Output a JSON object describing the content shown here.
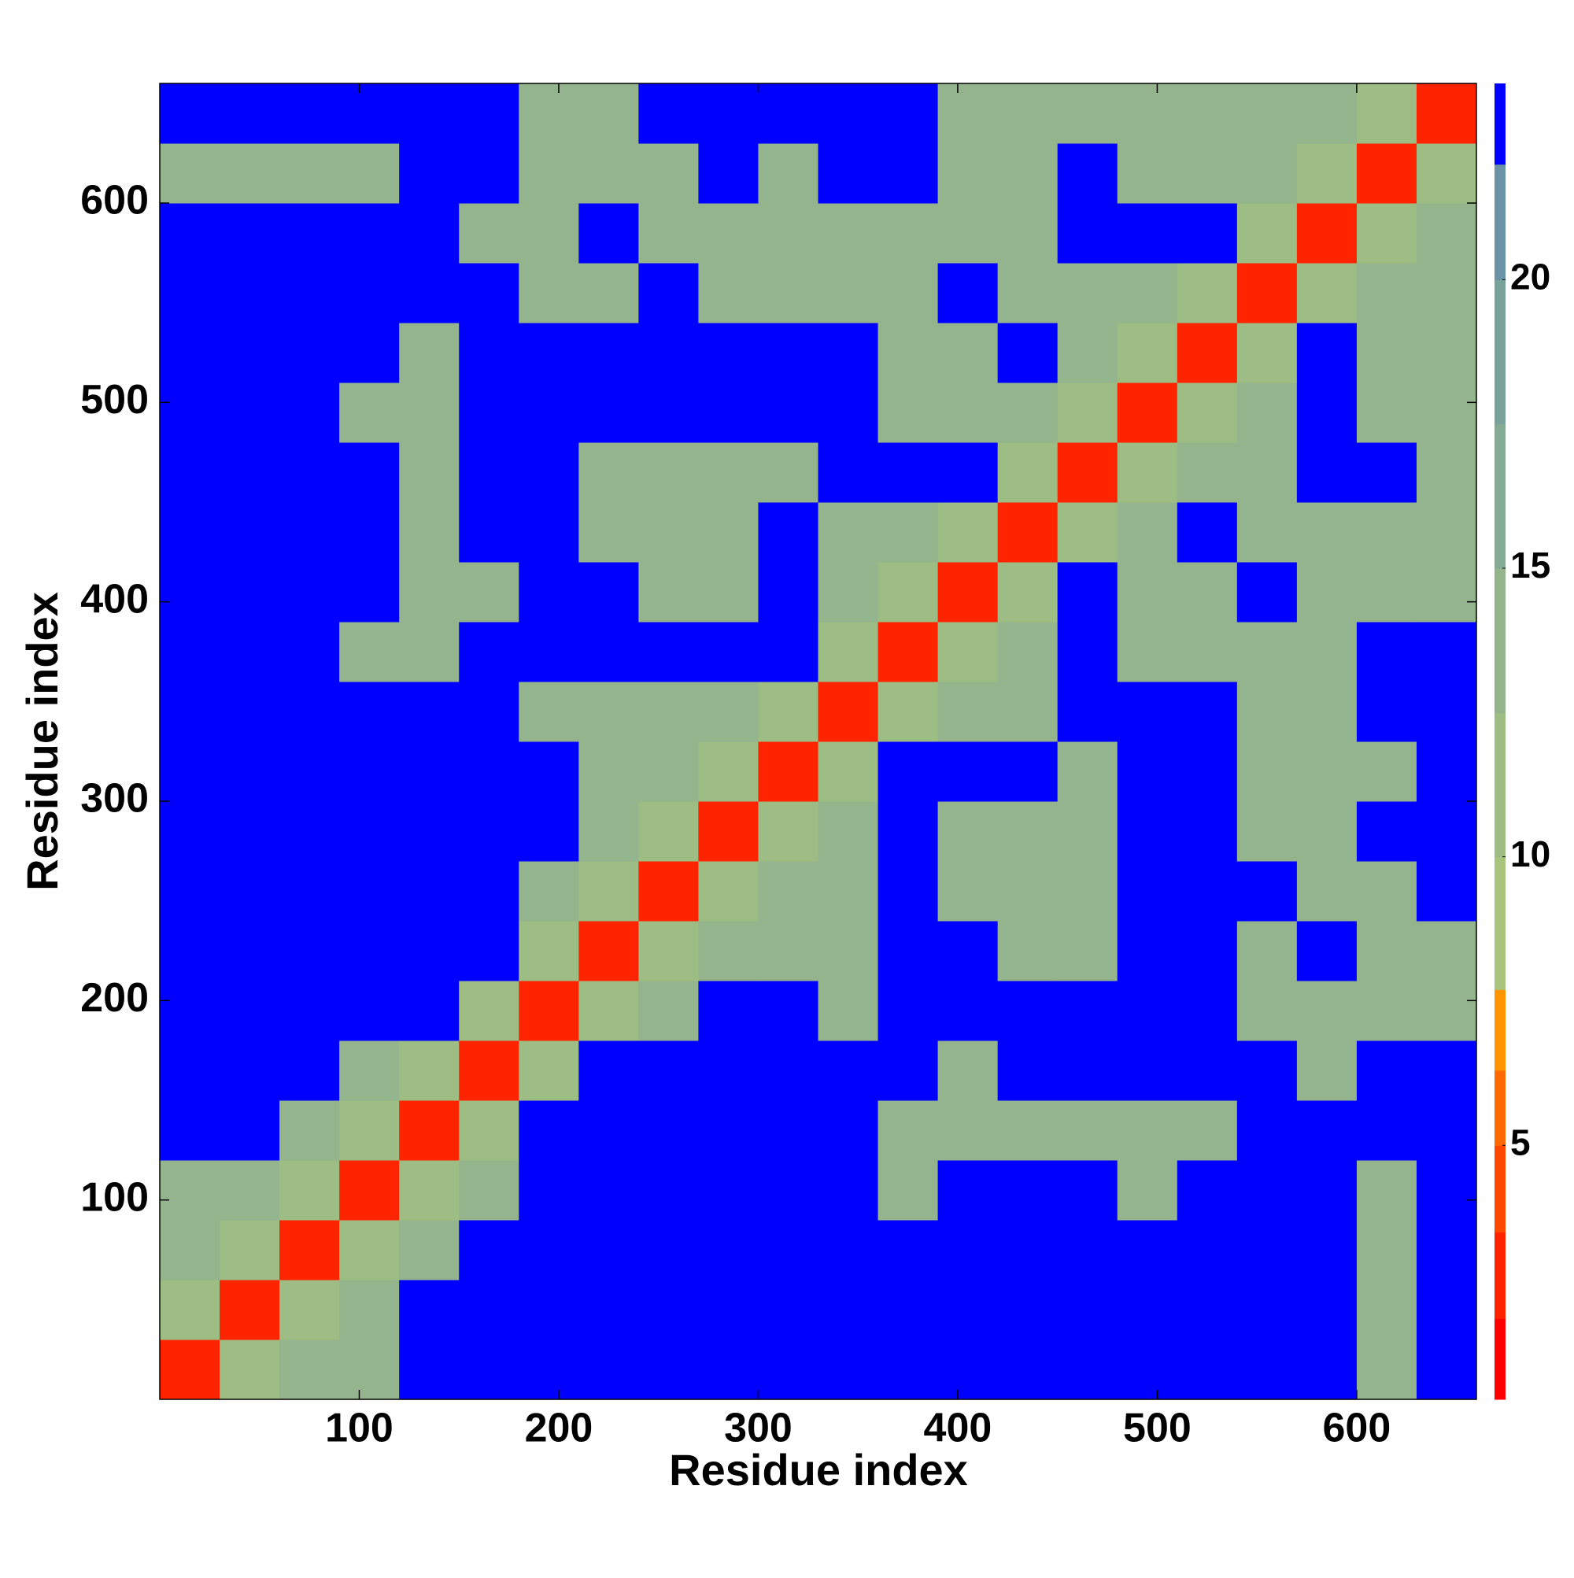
{
  "chart_data": {
    "type": "heatmap",
    "xlabel": "Residue index",
    "ylabel": "Residue index",
    "x": [
      15,
      45,
      75,
      105,
      135,
      165,
      195,
      225,
      255,
      285,
      315,
      345,
      375,
      405,
      435,
      465,
      495,
      525,
      555,
      585,
      615,
      645
    ],
    "y": [
      15,
      45,
      75,
      105,
      135,
      165,
      195,
      225,
      255,
      285,
      315,
      345,
      375,
      405,
      435,
      465,
      495,
      525,
      555,
      585,
      615,
      645
    ],
    "cell_size": 30,
    "z": [
      [
        2,
        10,
        14,
        14,
        24,
        24,
        24,
        24,
        24,
        24,
        24,
        24,
        24,
        24,
        24,
        24,
        24,
        24,
        24,
        24,
        14,
        24
      ],
      [
        10,
        2,
        10,
        14,
        24,
        24,
        24,
        24,
        24,
        24,
        24,
        24,
        24,
        24,
        24,
        24,
        24,
        24,
        24,
        24,
        14,
        24
      ],
      [
        14,
        10,
        2,
        10,
        14,
        24,
        24,
        24,
        24,
        24,
        24,
        24,
        24,
        24,
        24,
        24,
        24,
        24,
        24,
        24,
        14,
        24
      ],
      [
        14,
        14,
        10,
        2,
        10,
        14,
        24,
        24,
        24,
        24,
        24,
        24,
        14,
        24,
        24,
        24,
        14,
        24,
        24,
        24,
        14,
        24
      ],
      [
        24,
        24,
        14,
        10,
        2,
        10,
        24,
        24,
        24,
        24,
        24,
        24,
        14,
        14,
        14,
        14,
        14,
        14,
        24,
        24,
        24,
        24
      ],
      [
        24,
        24,
        24,
        14,
        10,
        2,
        10,
        24,
        24,
        24,
        24,
        24,
        24,
        14,
        24,
        24,
        24,
        24,
        24,
        14,
        24,
        24
      ],
      [
        24,
        24,
        24,
        24,
        24,
        10,
        2,
        10,
        14,
        24,
        24,
        14,
        24,
        24,
        24,
        24,
        24,
        24,
        14,
        14,
        14,
        14
      ],
      [
        24,
        24,
        24,
        24,
        24,
        24,
        10,
        2,
        10,
        14,
        14,
        14,
        24,
        24,
        14,
        14,
        24,
        24,
        14,
        24,
        14,
        14
      ],
      [
        24,
        24,
        24,
        24,
        24,
        24,
        14,
        10,
        2,
        10,
        14,
        14,
        24,
        14,
        14,
        14,
        24,
        24,
        24,
        14,
        14,
        24
      ],
      [
        24,
        24,
        24,
        24,
        24,
        24,
        24,
        14,
        10,
        2,
        10,
        14,
        24,
        14,
        14,
        14,
        24,
        24,
        14,
        14,
        24,
        24
      ],
      [
        24,
        24,
        24,
        24,
        24,
        24,
        24,
        14,
        14,
        10,
        2,
        10,
        24,
        24,
        24,
        14,
        24,
        24,
        14,
        14,
        14,
        24
      ],
      [
        24,
        24,
        24,
        24,
        24,
        24,
        14,
        14,
        14,
        14,
        10,
        2,
        10,
        14,
        14,
        24,
        24,
        24,
        14,
        14,
        24,
        24
      ],
      [
        24,
        24,
        24,
        14,
        14,
        24,
        24,
        24,
        24,
        24,
        24,
        10,
        2,
        10,
        14,
        24,
        14,
        14,
        14,
        14,
        24,
        24
      ],
      [
        24,
        24,
        24,
        24,
        14,
        14,
        24,
        24,
        14,
        14,
        24,
        14,
        10,
        2,
        10,
        24,
        14,
        14,
        24,
        14,
        14,
        14
      ],
      [
        24,
        24,
        24,
        24,
        14,
        24,
        24,
        14,
        14,
        14,
        24,
        14,
        14,
        10,
        2,
        10,
        14,
        24,
        14,
        14,
        14,
        14
      ],
      [
        24,
        24,
        24,
        24,
        14,
        24,
        24,
        14,
        14,
        14,
        14,
        24,
        24,
        24,
        10,
        2,
        10,
        14,
        14,
        24,
        24,
        14
      ],
      [
        24,
        24,
        24,
        14,
        14,
        24,
        24,
        24,
        24,
        24,
        24,
        24,
        14,
        14,
        14,
        10,
        2,
        10,
        14,
        24,
        14,
        14
      ],
      [
        24,
        24,
        24,
        24,
        14,
        24,
        24,
        24,
        24,
        24,
        24,
        24,
        14,
        14,
        24,
        14,
        10,
        2,
        10,
        24,
        14,
        14
      ],
      [
        24,
        24,
        24,
        24,
        24,
        24,
        14,
        14,
        24,
        14,
        14,
        14,
        14,
        24,
        14,
        14,
        14,
        10,
        2,
        10,
        14,
        14
      ],
      [
        24,
        24,
        24,
        24,
        24,
        14,
        14,
        24,
        14,
        14,
        14,
        14,
        14,
        14,
        14,
        24,
        24,
        24,
        10,
        2,
        10,
        14
      ],
      [
        14,
        14,
        14,
        14,
        24,
        24,
        14,
        14,
        14,
        24,
        14,
        24,
        24,
        14,
        14,
        24,
        14,
        14,
        14,
        10,
        2,
        10
      ],
      [
        24,
        24,
        24,
        24,
        24,
        24,
        14,
        14,
        24,
        24,
        24,
        24,
        24,
        14,
        14,
        14,
        14,
        14,
        14,
        14,
        10,
        2
      ]
    ],
    "xlim": [
      0,
      660
    ],
    "ylim": [
      0,
      660
    ],
    "xticks": [
      100,
      200,
      300,
      400,
      500,
      600
    ],
    "yticks": [
      100,
      200,
      300,
      400,
      500,
      600
    ],
    "colorbar_levels": [
      0.6,
      2,
      3.5,
      5,
      6.3,
      7.7,
      10,
      12.5,
      15,
      17.5,
      20,
      22,
      23.4
    ],
    "colorbar_colors": [
      "#ff0000",
      "#ff2400",
      "#ff4800",
      "#ff6a00",
      "#ff9500",
      "#a9c47c",
      "#9dbd85",
      "#93b48c",
      "#86ab94",
      "#7aa29c",
      "#6a94a6",
      "#0000ff"
    ],
    "colorbar_ticks": [
      5,
      10,
      15,
      20
    ]
  }
}
